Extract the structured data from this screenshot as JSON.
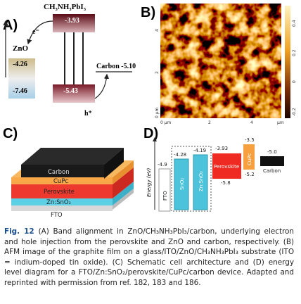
{
  "panel_a": {
    "label": "A)",
    "compound": "CH₃NH₃PbI₃",
    "electron": "e⁻",
    "zno": "ZnO",
    "lumo": "-3.93",
    "zno_cb": "-4.26",
    "zno_vb": "-7.46",
    "homo": "-5.43",
    "carbon": "Carbon -5.10",
    "hole": "h⁺"
  },
  "panel_b": {
    "label": "B)",
    "x_axis": [
      "0 μm",
      "2",
      "4",
      "μm"
    ],
    "y_axis": [
      "4",
      "2",
      "0 μm"
    ],
    "colorbar": [
      "0.4",
      "0.2",
      "0",
      "-0.2"
    ]
  },
  "panel_c": {
    "label": "C)",
    "layers": [
      "Carbon",
      "CuPc",
      "Perovskite",
      "Zn:SnO₂",
      "FTO"
    ]
  },
  "panel_d": {
    "label": "D)",
    "axis": "Energy (eV)",
    "fto": {
      "name": "FTO",
      "level": "-4.9"
    },
    "sno2": {
      "name": "SnO₂",
      "level": "-4.28"
    },
    "znsno2": {
      "name": "Zn:SnO₂",
      "level": "-4.19"
    },
    "perovskite": {
      "name": "Perovskite",
      "top": "-3.93",
      "bottom": "-5.8"
    },
    "cupc": {
      "name": "CuPc",
      "top": "-3.5",
      "bottom": "-5.2"
    },
    "carbon": {
      "name": "Carbon",
      "level": "-5.0"
    }
  },
  "caption": {
    "label": "Fig. 12",
    "text": "(A) Band alignment in ZnO/CH₃NH₃PbI₃/carbon, underlying electron and hole injection from the perovskite and ZnO and carbon, respectively. (B) AFM image of the graphite film on a glass/ITO/ZnO/CH₃NH₃PbI₃ substrate (ITO = indium-doped tin oxide). (C) Schematic cell architecture and (D) energy level diagram for a FTO/Zn:SnO₂/perovskite/CuPc/carbon device. Adapted and reprinted with permission from ref. 182, 183 and 186."
  }
}
